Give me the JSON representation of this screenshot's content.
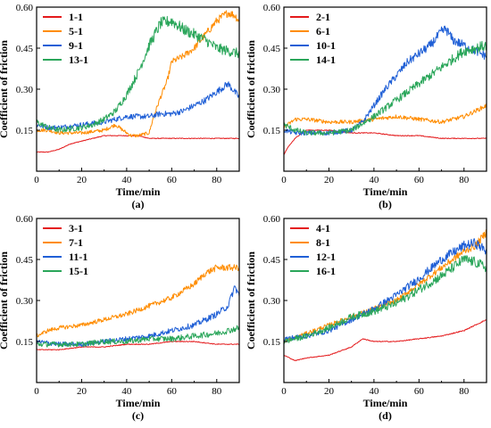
{
  "figure": {
    "panel_labels": [
      "(a)",
      "(b)",
      "(c)",
      "(d)"
    ]
  },
  "colors": {
    "red": "#e41a1c",
    "orange": "#ff8c00",
    "blue": "#1f5fd6",
    "green": "#2aa65a"
  },
  "chart_data": [
    {
      "type": "line",
      "panel": "(a)",
      "xlabel": "Time/min",
      "ylabel": "Coefficient of friction",
      "xlim": [
        0,
        90
      ],
      "ylim": [
        0,
        0.6
      ],
      "xticks": [
        0,
        20,
        40,
        60,
        80
      ],
      "yticks": [
        0.15,
        0.3,
        0.45,
        0.6
      ],
      "legend_position": "top-left",
      "series": [
        {
          "name": "1-1",
          "color": "red",
          "x": [
            0,
            5,
            10,
            15,
            20,
            25,
            30,
            35,
            40,
            45,
            50,
            55,
            60,
            65,
            70,
            75,
            80,
            85,
            90
          ],
          "y": [
            0.07,
            0.07,
            0.08,
            0.1,
            0.11,
            0.12,
            0.13,
            0.13,
            0.13,
            0.13,
            0.12,
            0.12,
            0.12,
            0.12,
            0.12,
            0.12,
            0.12,
            0.12,
            0.12
          ]
        },
        {
          "name": "5-1",
          "color": "orange",
          "x": [
            0,
            5,
            10,
            20,
            30,
            35,
            40,
            42,
            45,
            50,
            52,
            55,
            58,
            60,
            65,
            70,
            75,
            80,
            85,
            88,
            90
          ],
          "y": [
            0.15,
            0.15,
            0.14,
            0.14,
            0.15,
            0.17,
            0.14,
            0.13,
            0.13,
            0.14,
            0.2,
            0.27,
            0.33,
            0.4,
            0.42,
            0.45,
            0.5,
            0.55,
            0.58,
            0.57,
            0.55
          ]
        },
        {
          "name": "9-1",
          "color": "blue",
          "x": [
            0,
            5,
            10,
            20,
            30,
            40,
            50,
            55,
            60,
            65,
            70,
            75,
            80,
            85,
            88,
            90
          ],
          "y": [
            0.17,
            0.16,
            0.16,
            0.17,
            0.18,
            0.2,
            0.2,
            0.21,
            0.21,
            0.22,
            0.24,
            0.26,
            0.29,
            0.32,
            0.29,
            0.27
          ]
        },
        {
          "name": "13-1",
          "color": "green",
          "x": [
            0,
            5,
            10,
            20,
            25,
            30,
            35,
            40,
            45,
            50,
            55,
            60,
            65,
            70,
            75,
            80,
            85,
            90
          ],
          "y": [
            0.18,
            0.16,
            0.15,
            0.16,
            0.17,
            0.19,
            0.22,
            0.28,
            0.36,
            0.46,
            0.54,
            0.55,
            0.52,
            0.5,
            0.48,
            0.45,
            0.44,
            0.43
          ]
        }
      ]
    },
    {
      "type": "line",
      "panel": "(b)",
      "xlabel": "Time/min",
      "ylabel": "Coefficient of friction",
      "xlim": [
        0,
        90
      ],
      "ylim": [
        0,
        0.6
      ],
      "xticks": [
        0,
        20,
        40,
        60,
        80
      ],
      "yticks": [
        0.15,
        0.3,
        0.45,
        0.6
      ],
      "legend_position": "top-left",
      "series": [
        {
          "name": "2-1",
          "color": "red",
          "x": [
            0,
            2,
            5,
            8,
            10,
            15,
            20,
            30,
            40,
            50,
            60,
            70,
            80,
            90
          ],
          "y": [
            0.06,
            0.09,
            0.12,
            0.14,
            0.15,
            0.15,
            0.15,
            0.14,
            0.14,
            0.13,
            0.13,
            0.12,
            0.12,
            0.12
          ]
        },
        {
          "name": "6-1",
          "color": "orange",
          "x": [
            0,
            5,
            10,
            20,
            30,
            40,
            50,
            60,
            70,
            80,
            85,
            90
          ],
          "y": [
            0.16,
            0.19,
            0.19,
            0.18,
            0.18,
            0.19,
            0.2,
            0.19,
            0.18,
            0.2,
            0.22,
            0.24
          ]
        },
        {
          "name": "10-1",
          "color": "blue",
          "x": [
            0,
            5,
            10,
            20,
            30,
            35,
            40,
            45,
            50,
            55,
            60,
            65,
            70,
            72,
            75,
            80,
            85,
            90
          ],
          "y": [
            0.15,
            0.14,
            0.14,
            0.14,
            0.15,
            0.18,
            0.24,
            0.3,
            0.35,
            0.4,
            0.43,
            0.46,
            0.51,
            0.52,
            0.48,
            0.46,
            0.44,
            0.42
          ]
        },
        {
          "name": "14-1",
          "color": "green",
          "x": [
            0,
            5,
            10,
            20,
            30,
            40,
            50,
            60,
            70,
            80,
            90
          ],
          "y": [
            0.17,
            0.15,
            0.14,
            0.14,
            0.15,
            0.2,
            0.26,
            0.32,
            0.38,
            0.44,
            0.46
          ]
        }
      ]
    },
    {
      "type": "line",
      "panel": "(c)",
      "xlabel": "Time/min",
      "ylabel": "Coefficient of friction",
      "xlim": [
        0,
        90
      ],
      "ylim": [
        0,
        0.6
      ],
      "xticks": [
        0,
        20,
        40,
        60,
        80
      ],
      "yticks": [
        0.15,
        0.3,
        0.45,
        0.6
      ],
      "legend_position": "top-left",
      "series": [
        {
          "name": "3-1",
          "color": "red",
          "x": [
            0,
            10,
            20,
            30,
            40,
            50,
            60,
            70,
            80,
            90
          ],
          "y": [
            0.12,
            0.12,
            0.13,
            0.13,
            0.14,
            0.14,
            0.15,
            0.15,
            0.14,
            0.14
          ]
        },
        {
          "name": "7-1",
          "color": "orange",
          "x": [
            0,
            5,
            10,
            20,
            30,
            40,
            50,
            60,
            70,
            75,
            80,
            85,
            90
          ],
          "y": [
            0.17,
            0.19,
            0.2,
            0.21,
            0.23,
            0.25,
            0.28,
            0.31,
            0.36,
            0.4,
            0.42,
            0.42,
            0.42
          ]
        },
        {
          "name": "11-1",
          "color": "blue",
          "x": [
            0,
            10,
            20,
            30,
            40,
            50,
            60,
            70,
            75,
            80,
            85,
            88,
            90
          ],
          "y": [
            0.15,
            0.14,
            0.14,
            0.15,
            0.16,
            0.17,
            0.19,
            0.21,
            0.23,
            0.25,
            0.28,
            0.35,
            0.32
          ]
        },
        {
          "name": "15-1",
          "color": "green",
          "x": [
            0,
            10,
            20,
            30,
            40,
            50,
            60,
            70,
            80,
            90
          ],
          "y": [
            0.14,
            0.14,
            0.14,
            0.15,
            0.15,
            0.16,
            0.16,
            0.17,
            0.18,
            0.2
          ]
        }
      ]
    },
    {
      "type": "line",
      "panel": "(d)",
      "xlabel": "Time/min",
      "ylabel": "Coefficient of friction",
      "xlim": [
        0,
        90
      ],
      "ylim": [
        0,
        0.6
      ],
      "xticks": [
        0,
        20,
        40,
        60,
        80
      ],
      "yticks": [
        0.15,
        0.3,
        0.45,
        0.6
      ],
      "legend_position": "top-left",
      "series": [
        {
          "name": "4-1",
          "color": "red",
          "x": [
            0,
            5,
            10,
            20,
            30,
            35,
            40,
            50,
            60,
            70,
            80,
            85,
            90
          ],
          "y": [
            0.1,
            0.08,
            0.09,
            0.1,
            0.13,
            0.16,
            0.15,
            0.15,
            0.16,
            0.17,
            0.19,
            0.21,
            0.23
          ]
        },
        {
          "name": "8-1",
          "color": "orange",
          "x": [
            0,
            10,
            20,
            30,
            40,
            50,
            60,
            70,
            80,
            85,
            90
          ],
          "y": [
            0.15,
            0.18,
            0.21,
            0.24,
            0.27,
            0.3,
            0.36,
            0.42,
            0.48,
            0.5,
            0.55
          ]
        },
        {
          "name": "12-1",
          "color": "blue",
          "x": [
            0,
            10,
            20,
            30,
            40,
            50,
            60,
            70,
            80,
            85,
            90
          ],
          "y": [
            0.16,
            0.17,
            0.19,
            0.23,
            0.27,
            0.32,
            0.38,
            0.45,
            0.5,
            0.51,
            0.48
          ]
        },
        {
          "name": "16-1",
          "color": "green",
          "x": [
            0,
            10,
            20,
            30,
            40,
            50,
            60,
            70,
            80,
            85,
            90
          ],
          "y": [
            0.15,
            0.17,
            0.2,
            0.24,
            0.26,
            0.29,
            0.34,
            0.39,
            0.45,
            0.44,
            0.42
          ]
        }
      ]
    }
  ]
}
